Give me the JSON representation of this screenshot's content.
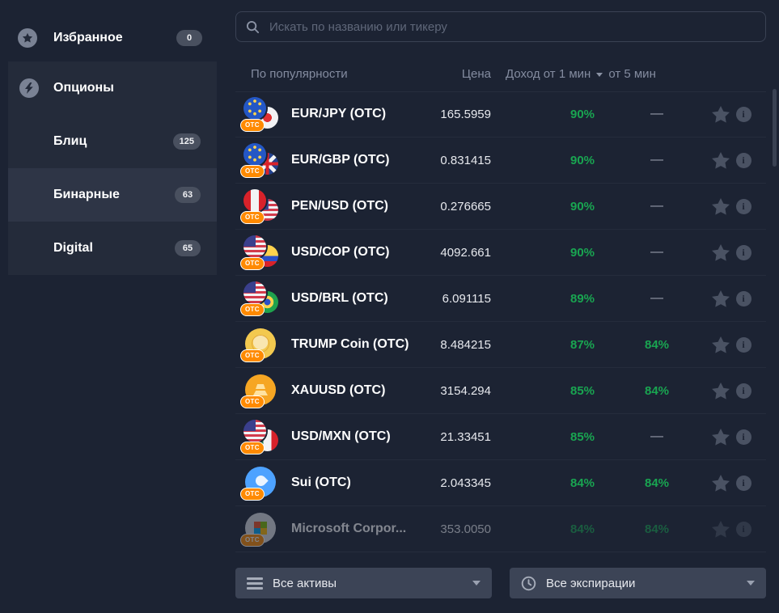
{
  "sidebar": {
    "favorites": {
      "label": "Избранное",
      "count": "0"
    },
    "options_group": {
      "label": "Опционы",
      "items": [
        {
          "label": "Блиц",
          "count": "125",
          "selected": false
        },
        {
          "label": "Бинарные",
          "count": "63",
          "selected": true
        },
        {
          "label": "Digital",
          "count": "65",
          "selected": false
        }
      ]
    }
  },
  "search": {
    "placeholder": "Искать по названию или тикеру"
  },
  "list": {
    "headers": {
      "popularity": "По популярности",
      "price": "Цена",
      "payout_1m": "Доход от 1 мин",
      "payout_5m": "от 5 мин"
    },
    "otc_badge": "OTC",
    "dash": "—",
    "rows": [
      {
        "name": "EUR/JPY (OTC)",
        "price": "165.5959",
        "p1": "90%",
        "p5": "—",
        "dimmed": false,
        "icon": {
          "kind": "pair",
          "a": "eur",
          "b": "jpy"
        }
      },
      {
        "name": "EUR/GBP (OTC)",
        "price": "0.831415",
        "p1": "90%",
        "p5": "—",
        "dimmed": false,
        "icon": {
          "kind": "pair",
          "a": "eur",
          "b": "gbp"
        }
      },
      {
        "name": "PEN/USD (OTC)",
        "price": "0.276665",
        "p1": "90%",
        "p5": "—",
        "dimmed": false,
        "icon": {
          "kind": "pair",
          "a": "pen",
          "b": "usd"
        }
      },
      {
        "name": "USD/COP (OTC)",
        "price": "4092.661",
        "p1": "90%",
        "p5": "—",
        "dimmed": false,
        "icon": {
          "kind": "pair",
          "a": "usd",
          "b": "cop"
        }
      },
      {
        "name": "USD/BRL (OTC)",
        "price": "6.091115",
        "p1": "89%",
        "p5": "—",
        "dimmed": false,
        "icon": {
          "kind": "pair",
          "a": "usd",
          "b": "brl"
        }
      },
      {
        "name": "TRUMP Coin (OTC)",
        "price": "8.484215",
        "p1": "87%",
        "p5": "84%",
        "dimmed": false,
        "icon": {
          "kind": "single",
          "a": "trump"
        }
      },
      {
        "name": "XAUUSD (OTC)",
        "price": "3154.294",
        "p1": "85%",
        "p5": "84%",
        "dimmed": false,
        "icon": {
          "kind": "single",
          "a": "xau"
        }
      },
      {
        "name": "USD/MXN (OTC)",
        "price": "21.33451",
        "p1": "85%",
        "p5": "—",
        "dimmed": false,
        "icon": {
          "kind": "pair",
          "a": "usd",
          "b": "mxn"
        }
      },
      {
        "name": "Sui (OTC)",
        "price": "2.043345",
        "p1": "84%",
        "p5": "84%",
        "dimmed": false,
        "icon": {
          "kind": "single",
          "a": "sui"
        }
      },
      {
        "name": "Microsoft Corpor...",
        "price": "353.0050",
        "p1": "84%",
        "p5": "84%",
        "dimmed": true,
        "icon": {
          "kind": "single",
          "a": "msft"
        }
      }
    ]
  },
  "footer": {
    "assets_filter": "Все активы",
    "expirations_filter": "Все экспирации"
  },
  "icons": {
    "info_glyph": "i"
  },
  "colors": {
    "background": "#1C2333",
    "group_panel": "#242B3A",
    "selected_item": "#2E3546",
    "payout_green": "#19A551",
    "otc_orange": "#FF8A00",
    "badge_pill": "#49505F",
    "muted_text": "#848CA0"
  }
}
